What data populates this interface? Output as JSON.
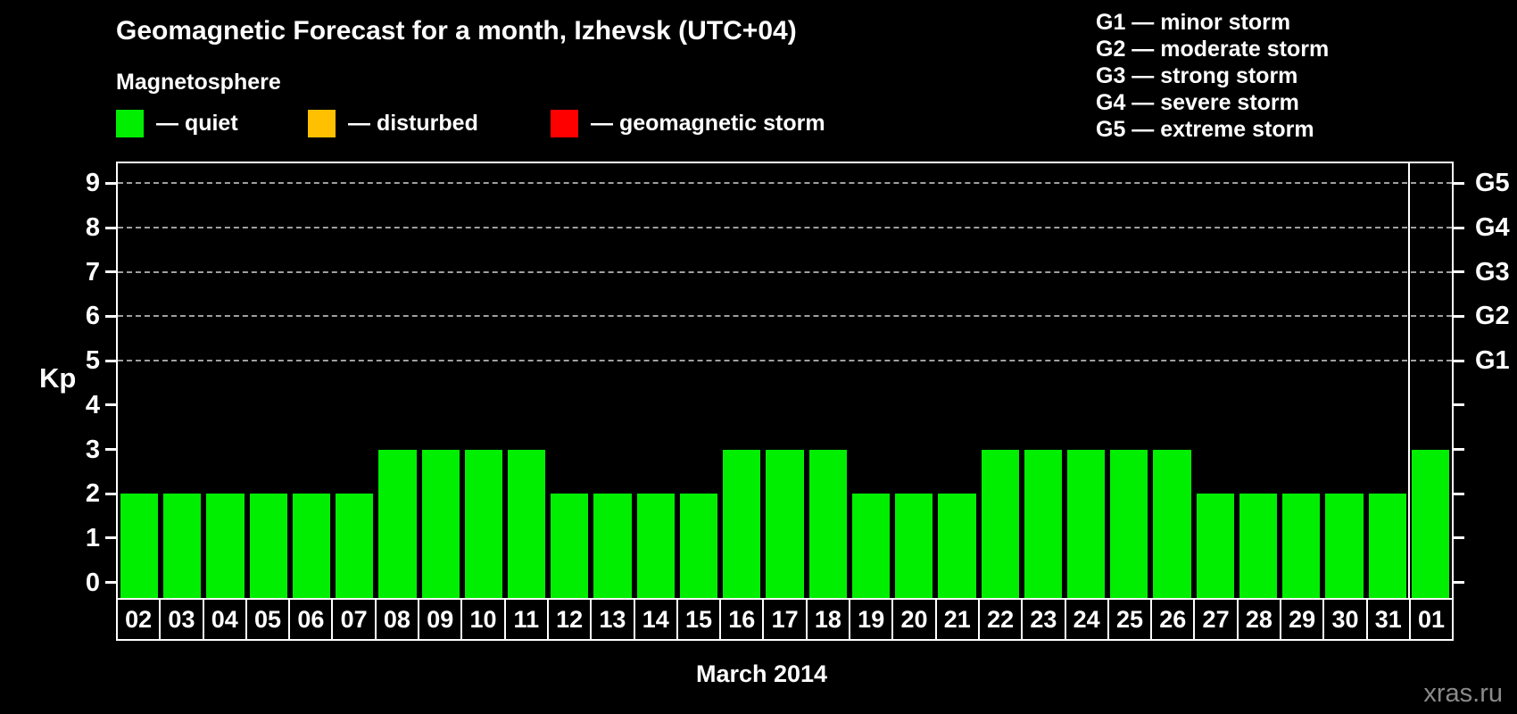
{
  "title": "Geomagnetic Forecast for a month, Izhevsk (UTC+04)",
  "subtitle": "Magnetosphere",
  "legend": {
    "items": [
      {
        "label": "— quiet",
        "color_key": "quiet"
      },
      {
        "label": "— disturbed",
        "color_key": "disturbed"
      },
      {
        "label": "— geomagnetic storm",
        "color_key": "storm"
      }
    ]
  },
  "g_legend": [
    "G1 — minor storm",
    "G2 — moderate storm",
    "G3 — strong storm",
    "G4 — severe storm",
    "G5 — extreme storm"
  ],
  "watermark": "xras.ru",
  "colors": {
    "quiet": "#00EE00",
    "disturbed": "#FFC000",
    "storm": "#FF0000",
    "background": "#000000",
    "frame": "#FFFFFF",
    "grid": "#A0A0A0",
    "text": "#FFFFFF",
    "watermark": "#8A8A8A"
  },
  "chart_data": {
    "type": "bar",
    "title": "Geomagnetic Forecast for a month, Izhevsk (UTC+04)",
    "categories": [
      "02",
      "03",
      "04",
      "05",
      "06",
      "07",
      "08",
      "09",
      "10",
      "11",
      "12",
      "13",
      "14",
      "15",
      "16",
      "17",
      "18",
      "19",
      "20",
      "21",
      "22",
      "23",
      "24",
      "25",
      "26",
      "27",
      "28",
      "29",
      "30",
      "31",
      "01"
    ],
    "values": [
      2,
      2,
      2,
      2,
      2,
      2,
      3,
      3,
      3,
      3,
      2,
      2,
      2,
      2,
      3,
      3,
      3,
      2,
      2,
      2,
      3,
      3,
      3,
      3,
      3,
      2,
      2,
      2,
      2,
      2,
      3
    ],
    "series_color_key": "quiet",
    "xlabel": "March 2014",
    "ylabel": "Kp",
    "ylim": [
      0,
      9
    ],
    "yticks": [
      0,
      1,
      2,
      3,
      4,
      5,
      6,
      7,
      8,
      9
    ],
    "grid_levels": [
      5,
      6,
      7,
      8,
      9
    ],
    "right_axis": [
      {
        "kp": 5,
        "label": "G1"
      },
      {
        "kp": 6,
        "label": "G2"
      },
      {
        "kp": 7,
        "label": "G3"
      },
      {
        "kp": 8,
        "label": "G4"
      },
      {
        "kp": 9,
        "label": "G5"
      }
    ],
    "month_boundary_before_index": 30,
    "legend_position": "top",
    "grid": "dashed horizontal at G-levels only"
  }
}
